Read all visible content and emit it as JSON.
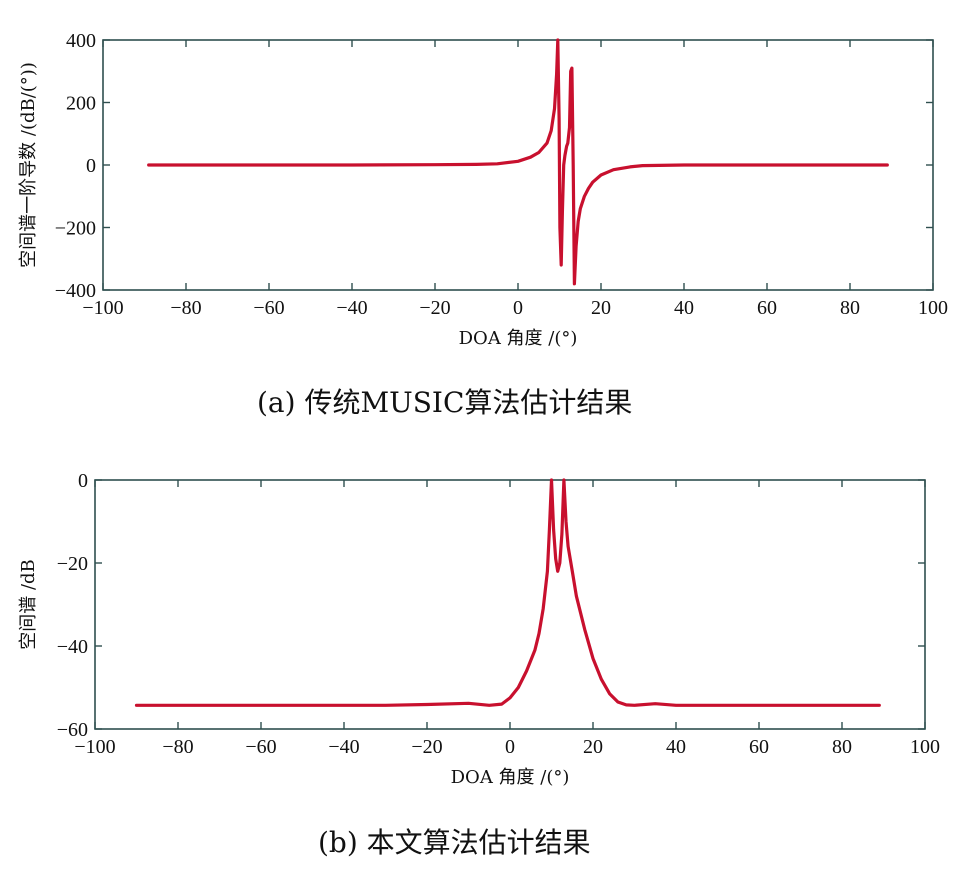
{
  "chart_data": [
    {
      "type": "line",
      "panel": "a",
      "caption": "(a) 传统MUSIC算法估计结果",
      "xlabel": "DOA 角度 /(°)",
      "ylabel": "空间谱一阶导数 /(dB/(°))",
      "xlim": [
        -100,
        100
      ],
      "ylim": [
        -400,
        400
      ],
      "xticks": [
        -100,
        -80,
        -60,
        -40,
        -20,
        0,
        20,
        40,
        60,
        80,
        100
      ],
      "yticks": [
        400,
        200,
        0,
        -200,
        -400
      ],
      "xtick_labels": [
        "−100",
        "−80",
        "−60",
        "−40",
        "−20",
        "0",
        "20",
        "40",
        "60",
        "80",
        "100"
      ],
      "ytick_labels": [
        "400",
        "200",
        "0",
        "−200",
        "−400"
      ],
      "grid": false,
      "line_color": "#c8102e",
      "series": [
        {
          "x": [
            -89,
            -60,
            -40,
            -20,
            -10,
            -5,
            0,
            3,
            5,
            7,
            8,
            8.8,
            9.3,
            9.6,
            9.9,
            10.1,
            10.4,
            10.7,
            11,
            11.3,
            11.7,
            12,
            12.4,
            12.7,
            13,
            13.3,
            13.6,
            14,
            14.5,
            15,
            16,
            17,
            18,
            20,
            23,
            27,
            30,
            40,
            60,
            80,
            89
          ],
          "y": [
            0,
            0,
            0,
            1,
            2,
            4,
            12,
            25,
            40,
            70,
            110,
            180,
            290,
            400,
            150,
            -200,
            -320,
            -150,
            0,
            30,
            60,
            70,
            120,
            300,
            310,
            0,
            -380,
            -260,
            -180,
            -140,
            -100,
            -75,
            -55,
            -32,
            -15,
            -6,
            -2,
            0,
            0,
            0,
            0
          ]
        }
      ]
    },
    {
      "type": "line",
      "panel": "b",
      "caption": "(b) 本文算法估计结果",
      "xlabel": "DOA 角度 /(°)",
      "ylabel": "空间谱 /dB",
      "xlim": [
        -100,
        100
      ],
      "ylim": [
        -60,
        0
      ],
      "xticks": [
        -100,
        -80,
        -60,
        -40,
        -20,
        0,
        20,
        40,
        60,
        80,
        100
      ],
      "yticks": [
        0,
        -20,
        -40,
        -60
      ],
      "xtick_labels": [
        "−100",
        "−80",
        "−60",
        "−40",
        "−20",
        "0",
        "20",
        "40",
        "60",
        "80",
        "100"
      ],
      "ytick_labels": [
        "0",
        "−20",
        "−40",
        "−60"
      ],
      "grid": false,
      "line_color": "#c8102e",
      "series": [
        {
          "x": [
            -90,
            -70,
            -50,
            -30,
            -20,
            -10,
            -5,
            -2,
            0,
            2,
            4,
            6,
            7,
            8,
            9,
            9.5,
            10,
            10.5,
            11,
            11.5,
            12,
            12.5,
            13,
            13.5,
            14,
            15,
            16,
            18,
            20,
            22,
            24,
            26,
            28,
            30,
            35,
            40,
            60,
            80,
            89
          ],
          "y": [
            -54.3,
            -54.3,
            -54.3,
            -54.3,
            -54.1,
            -53.8,
            -54.3,
            -54,
            -52.5,
            -50,
            -46,
            -41,
            -37,
            -31,
            -22,
            -12,
            0,
            -12,
            -19,
            -22,
            -20,
            -13,
            0,
            -10,
            -16,
            -22,
            -28,
            -36,
            -43,
            -48,
            -51.5,
            -53.5,
            -54.2,
            -54.3,
            -53.9,
            -54.3,
            -54.3,
            -54.3,
            -54.3
          ]
        }
      ]
    }
  ]
}
